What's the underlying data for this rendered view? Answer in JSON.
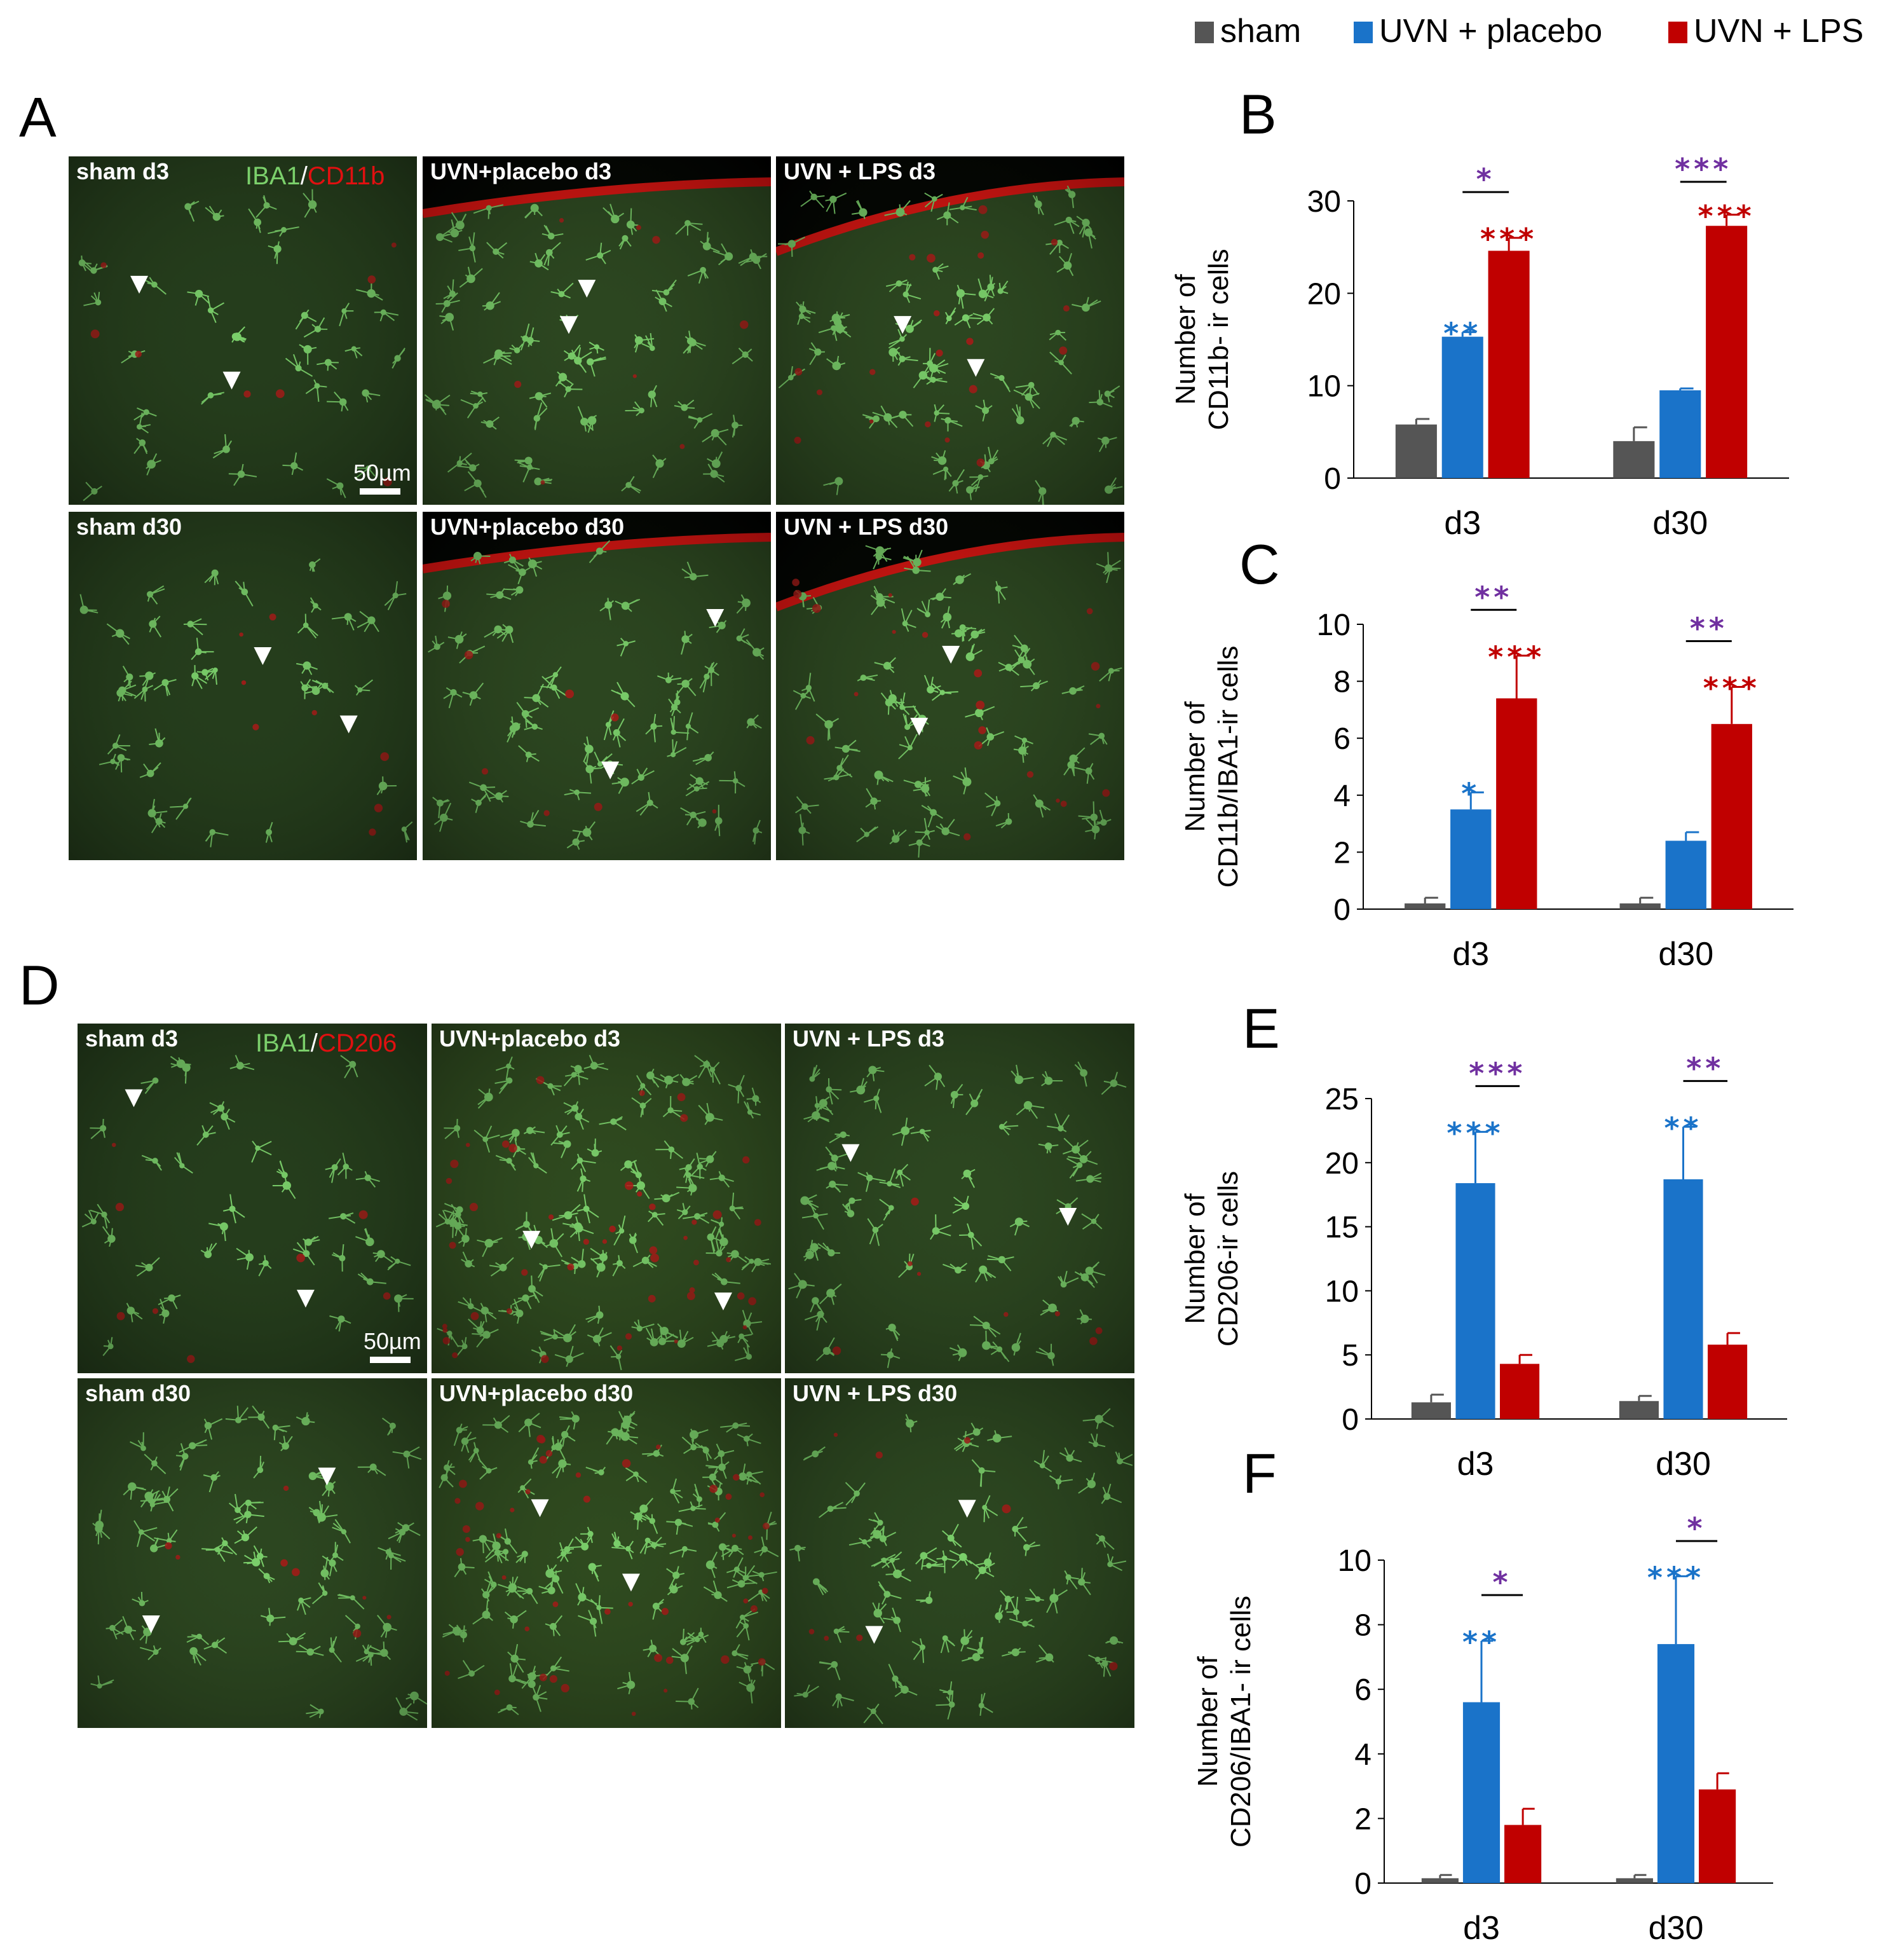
{
  "legend": [
    {
      "label": "sham",
      "color": "#555555"
    },
    {
      "label": "UVN + placebo",
      "color": "#1a73c9"
    },
    {
      "label": "UVN + LPS",
      "color": "#c00000"
    }
  ],
  "colors": {
    "sig_vs_sham_placebo": "#1a73c9",
    "sig_vs_sham_lps": "#c00000",
    "sig_between": "#7030a0",
    "iba1": "#7bd06b",
    "marker": "#e01010"
  },
  "micrographs": [
    {
      "letter": "A",
      "stain": {
        "green": "IBA1",
        "sep": "/",
        "red": "CD11b"
      },
      "scale_bar": "50µm",
      "tiles": [
        {
          "label": "sham d3",
          "variant": "sham"
        },
        {
          "label": "UVN+placebo d3",
          "variant": "placebo-edge"
        },
        {
          "label": "UVN + LPS d3",
          "variant": "lps-edge"
        },
        {
          "label": "sham d30",
          "variant": "sham"
        },
        {
          "label": "UVN+placebo d30",
          "variant": "placebo-edge"
        },
        {
          "label": "UVN + LPS d30",
          "variant": "lps-edge"
        }
      ]
    },
    {
      "letter": "D",
      "stain": {
        "green": "IBA1",
        "sep": "/",
        "red": "CD206"
      },
      "scale_bar": "50µm",
      "tiles": [
        {
          "label": "sham d3",
          "variant": "sham"
        },
        {
          "label": "UVN+placebo d3",
          "variant": "dense"
        },
        {
          "label": "UVN + LPS d3",
          "variant": "mid"
        },
        {
          "label": "sham d30",
          "variant": "mid"
        },
        {
          "label": "UVN+placebo d30",
          "variant": "dense"
        },
        {
          "label": "UVN + LPS d30",
          "variant": "mid"
        }
      ]
    }
  ],
  "chart_data": [
    {
      "letter": "B",
      "type": "bar",
      "ylabel": [
        "Number of",
        "CD11b- ir cells"
      ],
      "categories": [
        "d3",
        "d30"
      ],
      "ylim": [
        0,
        30
      ],
      "yticks": [
        0,
        10,
        20,
        30
      ],
      "series": [
        {
          "name": "sham",
          "values": [
            5.8,
            4.0
          ],
          "errors": [
            0.6,
            1.5
          ]
        },
        {
          "name": "UVN + placebo",
          "values": [
            15.3,
            9.5
          ],
          "errors": [
            0.5,
            0.2
          ]
        },
        {
          "name": "UVN + LPS",
          "values": [
            24.6,
            27.3
          ],
          "errors": [
            1.4,
            1.2
          ]
        }
      ],
      "significance": [
        {
          "category": 0,
          "series": 1,
          "text": "**"
        },
        {
          "category": 0,
          "series": 2,
          "text": "***"
        },
        {
          "category": 0,
          "between": [
            1,
            2
          ],
          "text": "*"
        },
        {
          "category": 1,
          "series": 2,
          "text": "***"
        },
        {
          "category": 1,
          "between": [
            1,
            2
          ],
          "text": "***"
        }
      ]
    },
    {
      "letter": "C",
      "type": "bar",
      "ylabel": [
        "Number of",
        "CD11b/IBA1-ir cells"
      ],
      "categories": [
        "d3",
        "d30"
      ],
      "ylim": [
        0,
        10
      ],
      "yticks": [
        0,
        2,
        4,
        6,
        8,
        10
      ],
      "series": [
        {
          "name": "sham",
          "values": [
            0.2,
            0.2
          ],
          "errors": [
            0.2,
            0.2
          ]
        },
        {
          "name": "UVN + placebo",
          "values": [
            3.5,
            2.4
          ],
          "errors": [
            0.6,
            0.3
          ]
        },
        {
          "name": "UVN + LPS",
          "values": [
            7.4,
            6.5
          ],
          "errors": [
            1.5,
            1.3
          ]
        }
      ],
      "significance": [
        {
          "category": 0,
          "series": 1,
          "text": "*"
        },
        {
          "category": 0,
          "series": 2,
          "text": "***"
        },
        {
          "category": 0,
          "between": [
            1,
            2
          ],
          "text": "**"
        },
        {
          "category": 1,
          "series": 2,
          "text": "***"
        },
        {
          "category": 1,
          "between": [
            1,
            2
          ],
          "text": "**"
        }
      ]
    },
    {
      "letter": "E",
      "type": "bar",
      "ylabel": [
        "Number of",
        "CD206-ir cells"
      ],
      "categories": [
        "d3",
        "d30"
      ],
      "ylim": [
        0,
        25
      ],
      "yticks": [
        0,
        5,
        10,
        15,
        20,
        25
      ],
      "series": [
        {
          "name": "sham",
          "values": [
            1.3,
            1.4
          ],
          "errors": [
            0.6,
            0.4
          ]
        },
        {
          "name": "UVN + placebo",
          "values": [
            18.4,
            18.7
          ],
          "errors": [
            4.0,
            4.1
          ]
        },
        {
          "name": "UVN + LPS",
          "values": [
            4.3,
            5.8
          ],
          "errors": [
            0.7,
            0.9
          ]
        }
      ],
      "significance": [
        {
          "category": 0,
          "series": 1,
          "text": "***"
        },
        {
          "category": 0,
          "between": [
            1,
            2
          ],
          "text": "***"
        },
        {
          "category": 1,
          "series": 1,
          "text": "**"
        },
        {
          "category": 1,
          "between": [
            1,
            2
          ],
          "text": "**"
        }
      ]
    },
    {
      "letter": "F",
      "type": "bar",
      "ylabel": [
        "Number of",
        "CD206/IBA1- ir cells"
      ],
      "categories": [
        "d3",
        "d30"
      ],
      "ylim": [
        0,
        10
      ],
      "yticks": [
        0,
        2,
        4,
        6,
        8,
        10
      ],
      "series": [
        {
          "name": "sham",
          "values": [
            0.15,
            0.15
          ],
          "errors": [
            0.1,
            0.1
          ]
        },
        {
          "name": "UVN + placebo",
          "values": [
            5.6,
            7.4
          ],
          "errors": [
            1.9,
            2.1
          ]
        },
        {
          "name": "UVN + LPS",
          "values": [
            1.8,
            2.9
          ],
          "errors": [
            0.5,
            0.5
          ]
        }
      ],
      "significance": [
        {
          "category": 0,
          "series": 1,
          "text": "**"
        },
        {
          "category": 0,
          "between": [
            1,
            2
          ],
          "text": "*"
        },
        {
          "category": 1,
          "series": 1,
          "text": "***"
        },
        {
          "category": 1,
          "between": [
            1,
            2
          ],
          "text": "*"
        }
      ]
    }
  ]
}
